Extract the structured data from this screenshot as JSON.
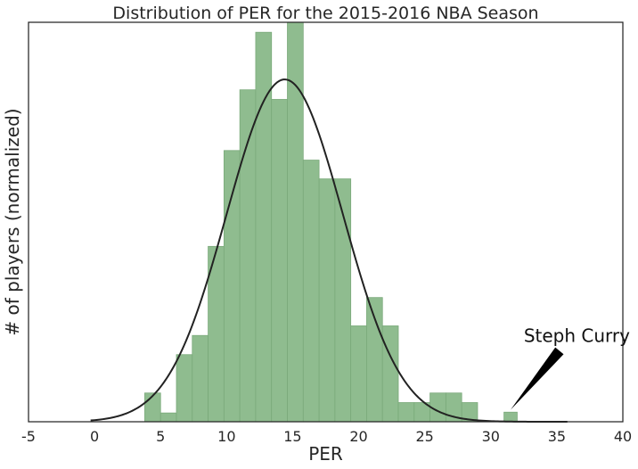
{
  "chart_data": {
    "type": "histogram",
    "title": "Distribution of PER for the 2015-2016 NBA Season",
    "xlabel": "PER",
    "ylabel": "# of players (normalized)",
    "xlim": [
      -5,
      40
    ],
    "ylim": [
      0,
      0.1
    ],
    "x_ticks": [
      -5,
      0,
      5,
      10,
      15,
      20,
      25,
      30,
      35,
      40
    ],
    "y_ticks_shown": false,
    "grid": false,
    "bar_color": "#8fbc8f",
    "curve_color": "#222222",
    "bins": [
      {
        "x0": 3.8,
        "x1": 5.0,
        "density": 0.0072
      },
      {
        "x0": 5.0,
        "x1": 6.2,
        "density": 0.0022
      },
      {
        "x0": 6.2,
        "x1": 7.4,
        "density": 0.0168
      },
      {
        "x0": 7.4,
        "x1": 8.6,
        "density": 0.0216
      },
      {
        "x0": 8.6,
        "x1": 9.8,
        "density": 0.0439
      },
      {
        "x0": 9.8,
        "x1": 11.0,
        "density": 0.0679
      },
      {
        "x0": 11.0,
        "x1": 12.2,
        "density": 0.0831
      },
      {
        "x0": 12.2,
        "x1": 13.4,
        "density": 0.0975
      },
      {
        "x0": 13.4,
        "x1": 14.6,
        "density": 0.0807
      },
      {
        "x0": 14.6,
        "x1": 15.8,
        "density": 0.1
      },
      {
        "x0": 15.8,
        "x1": 17.0,
        "density": 0.0655
      },
      {
        "x0": 17.0,
        "x1": 18.2,
        "density": 0.0608
      },
      {
        "x0": 18.2,
        "x1": 19.4,
        "density": 0.0608
      },
      {
        "x0": 19.4,
        "x1": 20.6,
        "density": 0.024
      },
      {
        "x0": 20.6,
        "x1": 21.8,
        "density": 0.0311
      },
      {
        "x0": 21.8,
        "x1": 23.0,
        "density": 0.024
      },
      {
        "x0": 23.0,
        "x1": 24.2,
        "density": 0.0048
      },
      {
        "x0": 24.2,
        "x1": 25.4,
        "density": 0.0048
      },
      {
        "x0": 25.4,
        "x1": 26.6,
        "density": 0.0072
      },
      {
        "x0": 26.6,
        "x1": 27.8,
        "density": 0.0072
      },
      {
        "x0": 27.8,
        "x1": 29.0,
        "density": 0.0048
      },
      {
        "x0": 31.0,
        "x1": 32.0,
        "density": 0.0024
      }
    ],
    "normal_fit": {
      "mean": 14.4,
      "std": 4.4,
      "x_start": -0.3,
      "x_end": 35.8
    },
    "annotation": {
      "text": "Steph Curry",
      "point": [
        31.5,
        0.003
      ],
      "text_position": [
        32.5,
        0.02
      ]
    }
  }
}
